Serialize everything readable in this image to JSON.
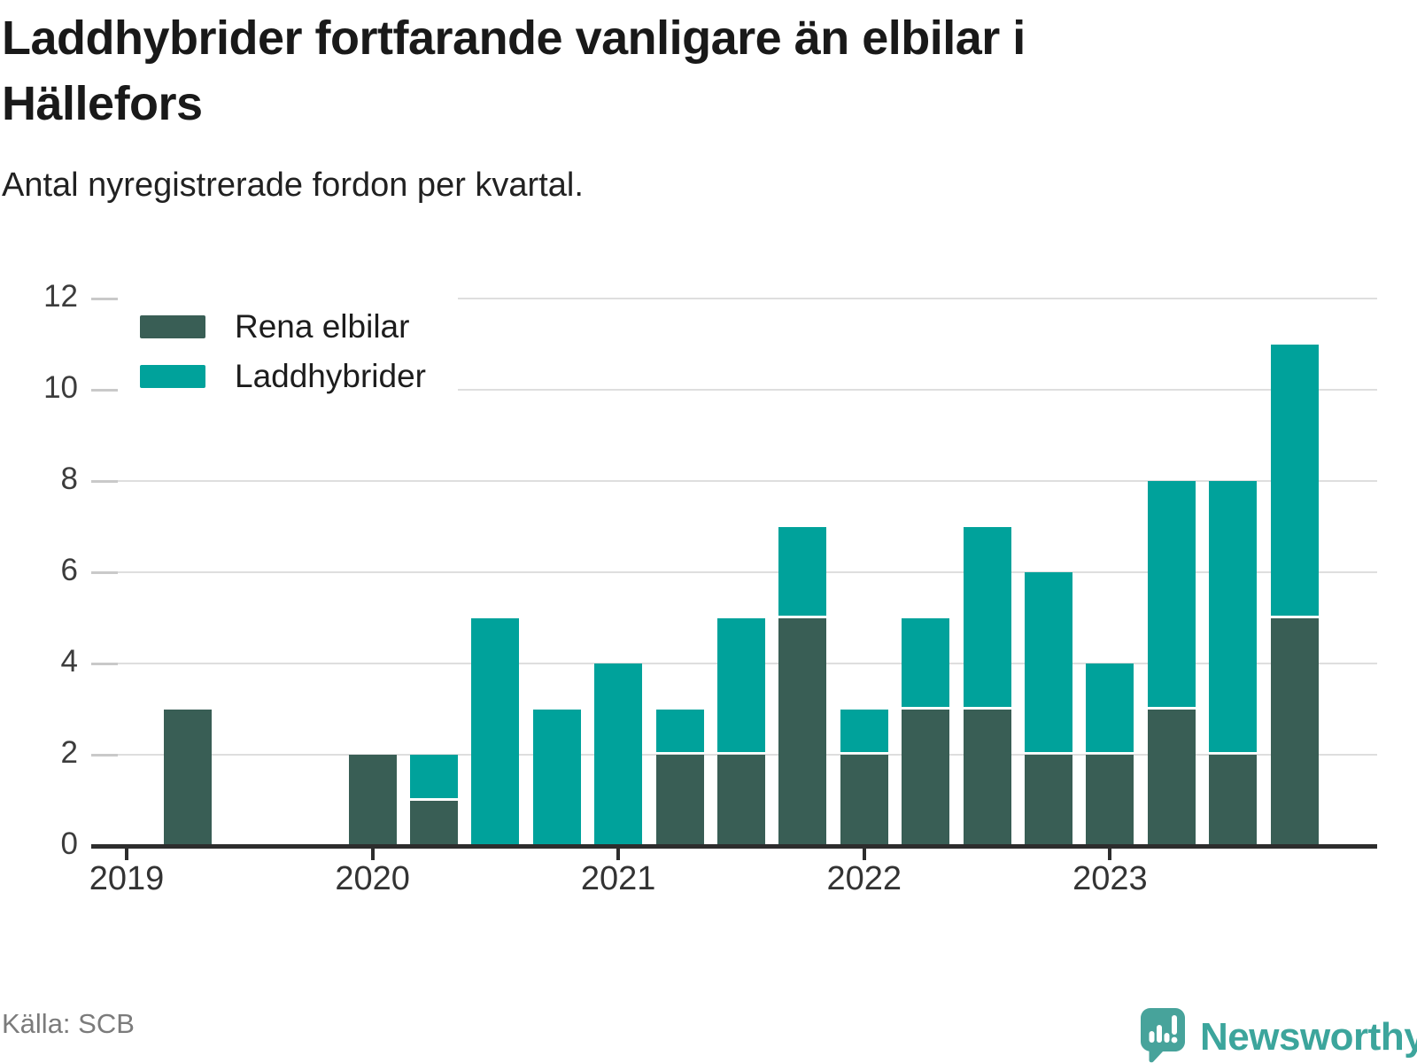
{
  "header": {
    "title_line1": "Laddhybrider fortfarande vanligare än elbilar i",
    "title_line2": "Hällefors",
    "subtitle": "Antal nyregistrerade fordon per kvartal."
  },
  "legend": {
    "items": [
      {
        "label": "Rena elbilar",
        "color": "#395e55"
      },
      {
        "label": "Laddhybrider",
        "color": "#00a29b"
      }
    ]
  },
  "chart_data": {
    "type": "bar",
    "stacked": true,
    "title": "Laddhybrider fortfarande vanligare än elbilar i Hällefors",
    "subtitle": "Antal nyregistrerade fordon per kvartal.",
    "ylabel": "",
    "xlabel": "",
    "categories": [
      "2019 Q1",
      "2019 Q2",
      "2019 Q3",
      "2019 Q4",
      "2020 Q1",
      "2020 Q2",
      "2020 Q3",
      "2020 Q4",
      "2021 Q1",
      "2021 Q2",
      "2021 Q3",
      "2021 Q4",
      "2022 Q1",
      "2022 Q2",
      "2022 Q3",
      "2022 Q4",
      "2023 Q1",
      "2023 Q2",
      "2023 Q3",
      "2023 Q4"
    ],
    "series": [
      {
        "name": "Rena elbilar",
        "color": "#395e55",
        "values": [
          0,
          3,
          0,
          0,
          2,
          1,
          0,
          0,
          0,
          2,
          2,
          5,
          2,
          3,
          3,
          2,
          2,
          3,
          2,
          5
        ]
      },
      {
        "name": "Laddhybrider",
        "color": "#00a29b",
        "values": [
          0,
          0,
          0,
          0,
          0,
          1,
          5,
          3,
          4,
          1,
          3,
          2,
          1,
          2,
          4,
          4,
          2,
          5,
          6,
          6
        ]
      }
    ],
    "ylim": [
      0,
      12
    ],
    "yticks": [
      0,
      2,
      4,
      6,
      8,
      10,
      12
    ],
    "x_tick_labels": [
      {
        "label": "2019",
        "quarter_index": 0
      },
      {
        "label": "2020",
        "quarter_index": 4
      },
      {
        "label": "2021",
        "quarter_index": 8
      },
      {
        "label": "2022",
        "quarter_index": 12
      },
      {
        "label": "2023",
        "quarter_index": 16
      }
    ],
    "grid": true,
    "legend_position": "top-left"
  },
  "footer": {
    "source": "Källa: SCB",
    "brand": "Newsworthy"
  }
}
